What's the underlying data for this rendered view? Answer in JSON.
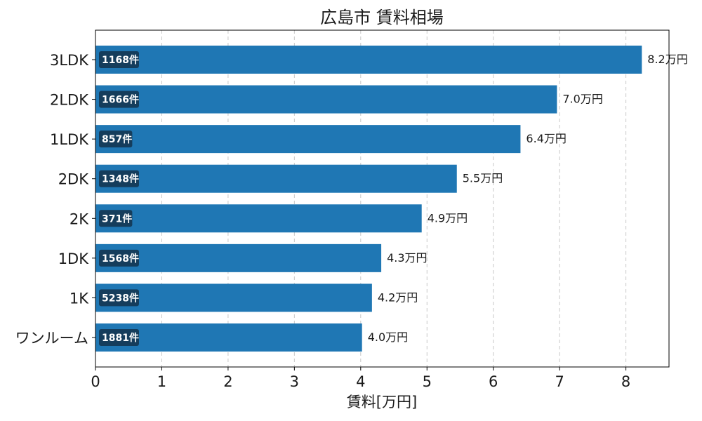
{
  "chart_data": {
    "type": "bar",
    "orientation": "horizontal",
    "title": "広島市 賃料相場",
    "xlabel": "賃料[万円]",
    "ylabel": "",
    "xlim": [
      0,
      8.65
    ],
    "xticks": [
      "0",
      "1",
      "2",
      "3",
      "4",
      "5",
      "6",
      "7",
      "8"
    ],
    "grid": "x-dashed",
    "bar_color": "#1f77b4",
    "badge_color": "#153d5c",
    "categories": [
      "3LDK",
      "2LDK",
      "1LDK",
      "2DK",
      "2K",
      "1DK",
      "1K",
      "ワンルーム"
    ],
    "values": [
      8.24,
      6.96,
      6.41,
      5.45,
      4.92,
      4.31,
      4.17,
      4.02
    ],
    "value_labels": [
      "8.2万円",
      "7.0万円",
      "6.4万円",
      "5.5万円",
      "4.9万円",
      "4.3万円",
      "4.2万円",
      "4.0万円"
    ],
    "counts": [
      "1168件",
      "1666件",
      "857件",
      "1348件",
      "371件",
      "1568件",
      "5238件",
      "1881件"
    ]
  }
}
